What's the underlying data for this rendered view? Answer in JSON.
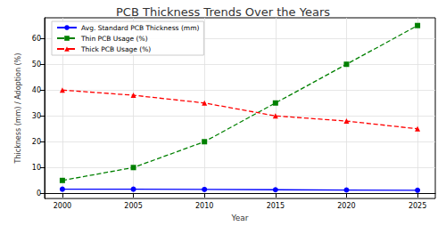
{
  "chart_data": {
    "type": "line",
    "title": "PCB Thickness Trends Over the Years",
    "x_label": "Year",
    "y_label": "Thickness (mm) / Adoption (%)",
    "x": [
      2000,
      2005,
      2010,
      2015,
      2020,
      2025
    ],
    "series": [
      {
        "name": "Avg. Standard PCB Thickness (mm)",
        "color": "#0000ff",
        "marker": "circle",
        "line_style": "solid",
        "values": [
          1.6,
          1.6,
          1.5,
          1.4,
          1.3,
          1.2
        ]
      },
      {
        "name": "Thin PCB Usage (%)",
        "color": "#008000",
        "marker": "square",
        "line_style": "dashed",
        "values": [
          5,
          10,
          20,
          35,
          50,
          65
        ]
      },
      {
        "name": "Thick PCB Usage (%)",
        "color": "#ff0000",
        "marker": "triangle",
        "line_style": "dashed",
        "values": [
          40,
          38,
          35,
          30,
          28,
          25
        ]
      }
    ],
    "xlim": [
      1998.75,
      2026.25
    ],
    "xticks": [
      2000,
      2005,
      2010,
      2015,
      2020,
      2025
    ],
    "ylim": [
      -2,
      68
    ],
    "yticks": [
      0,
      10,
      20,
      30,
      40,
      50,
      60
    ],
    "grid": true,
    "legend": "upper left"
  }
}
